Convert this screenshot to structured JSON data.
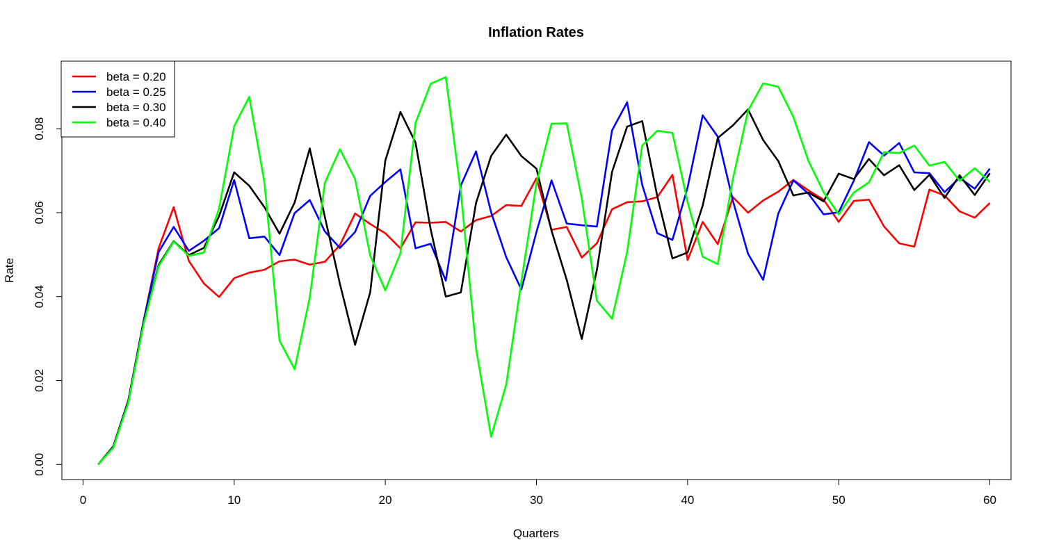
{
  "chart_data": {
    "type": "line",
    "title": "Inflation Rates",
    "xlabel": "Quarters",
    "ylabel": "Rate",
    "xlim": [
      -1.4,
      61.4
    ],
    "ylim": [
      -0.0036,
      0.0961
    ],
    "x_ticks": [
      0,
      10,
      20,
      30,
      40,
      50,
      60
    ],
    "x_tick_labels": [
      "0",
      "10",
      "20",
      "30",
      "40",
      "50",
      "60"
    ],
    "y_ticks": [
      0.0,
      0.02,
      0.04,
      0.06,
      0.08
    ],
    "y_tick_labels": [
      "0.00",
      "0.02",
      "0.04",
      "0.06",
      "0.08"
    ],
    "grid": false,
    "legend_position": "top-left",
    "x": [
      1,
      2,
      3,
      4,
      5,
      6,
      7,
      8,
      9,
      10,
      11,
      12,
      13,
      14,
      15,
      16,
      17,
      18,
      19,
      20,
      21,
      22,
      23,
      24,
      25,
      26,
      27,
      28,
      29,
      30,
      31,
      32,
      33,
      34,
      35,
      36,
      37,
      38,
      39,
      40,
      41,
      42,
      43,
      44,
      45,
      46,
      47,
      48,
      49,
      50,
      51,
      52,
      53,
      54,
      55,
      56,
      57,
      58,
      59,
      60
    ],
    "series": [
      {
        "name": "beta = 0.20",
        "color": "#ff0000",
        "values": [
          0.0,
          0.0043,
          0.0153,
          0.0341,
          0.0515,
          0.0613,
          0.0485,
          0.0431,
          0.0399,
          0.0444,
          0.0457,
          0.0464,
          0.0484,
          0.0488,
          0.0476,
          0.0483,
          0.0523,
          0.0598,
          0.0573,
          0.0551,
          0.0515,
          0.0577,
          0.0576,
          0.0578,
          0.0555,
          0.0582,
          0.0592,
          0.0618,
          0.0616,
          0.0682,
          0.0559,
          0.0566,
          0.0493,
          0.0527,
          0.0608,
          0.0625,
          0.0627,
          0.0637,
          0.069,
          0.0487,
          0.0578,
          0.0525,
          0.0637,
          0.06,
          0.0629,
          0.065,
          0.0678,
          0.0653,
          0.0631,
          0.0578,
          0.0628,
          0.0631,
          0.0567,
          0.0527,
          0.0519,
          0.0655,
          0.0641,
          0.0603,
          0.0588,
          0.0623
        ]
      },
      {
        "name": "beta = 0.25",
        "color": "#0000ff",
        "values": [
          0.0,
          0.0043,
          0.0153,
          0.0341,
          0.0506,
          0.0566,
          0.0509,
          0.0533,
          0.0563,
          0.0678,
          0.0539,
          0.0543,
          0.0499,
          0.0599,
          0.063,
          0.0555,
          0.0516,
          0.0554,
          0.064,
          0.0673,
          0.0703,
          0.0515,
          0.0526,
          0.0438,
          0.0665,
          0.0746,
          0.0601,
          0.0494,
          0.0417,
          0.0554,
          0.0677,
          0.0574,
          0.057,
          0.0567,
          0.0796,
          0.0863,
          0.0666,
          0.0551,
          0.0535,
          0.066,
          0.0832,
          0.0781,
          0.0628,
          0.0502,
          0.044,
          0.0598,
          0.0677,
          0.0645,
          0.0596,
          0.0601,
          0.0676,
          0.0768,
          0.0736,
          0.0766,
          0.0696,
          0.0694,
          0.0649,
          0.0683,
          0.0657,
          0.0705
        ]
      },
      {
        "name": "beta = 0.30",
        "color": "#000000",
        "values": [
          0.0,
          0.0042,
          0.0151,
          0.0338,
          0.0475,
          0.0532,
          0.0499,
          0.0516,
          0.0592,
          0.0696,
          0.0664,
          0.0613,
          0.055,
          0.0624,
          0.0753,
          0.059,
          0.043,
          0.0285,
          0.041,
          0.0724,
          0.084,
          0.0767,
          0.056,
          0.04,
          0.041,
          0.0623,
          0.0735,
          0.0786,
          0.0735,
          0.0705,
          0.0557,
          0.044,
          0.0299,
          0.0463,
          0.0697,
          0.0805,
          0.0818,
          0.0638,
          0.0491,
          0.0505,
          0.0617,
          0.0778,
          0.0808,
          0.0846,
          0.0773,
          0.0723,
          0.0641,
          0.0648,
          0.0627,
          0.0693,
          0.068,
          0.0728,
          0.0689,
          0.0713,
          0.0654,
          0.069,
          0.0635,
          0.0689,
          0.0642,
          0.0694
        ]
      },
      {
        "name": "beta = 0.40",
        "color": "#00ff00",
        "values": [
          0.0,
          0.004,
          0.0148,
          0.0334,
          0.0472,
          0.0531,
          0.0497,
          0.0505,
          0.061,
          0.0806,
          0.0876,
          0.0672,
          0.0295,
          0.0227,
          0.0398,
          0.0671,
          0.0751,
          0.068,
          0.0498,
          0.0415,
          0.0503,
          0.0814,
          0.0907,
          0.0923,
          0.0648,
          0.0277,
          0.0066,
          0.019,
          0.0436,
          0.067,
          0.0812,
          0.0813,
          0.0634,
          0.039,
          0.0347,
          0.0506,
          0.076,
          0.0795,
          0.079,
          0.0625,
          0.0495,
          0.0477,
          0.0681,
          0.0843,
          0.0908,
          0.09,
          0.0828,
          0.0723,
          0.0649,
          0.0596,
          0.0648,
          0.0672,
          0.0744,
          0.0742,
          0.076,
          0.0712,
          0.0721,
          0.0676,
          0.0706,
          0.0673
        ]
      }
    ]
  }
}
